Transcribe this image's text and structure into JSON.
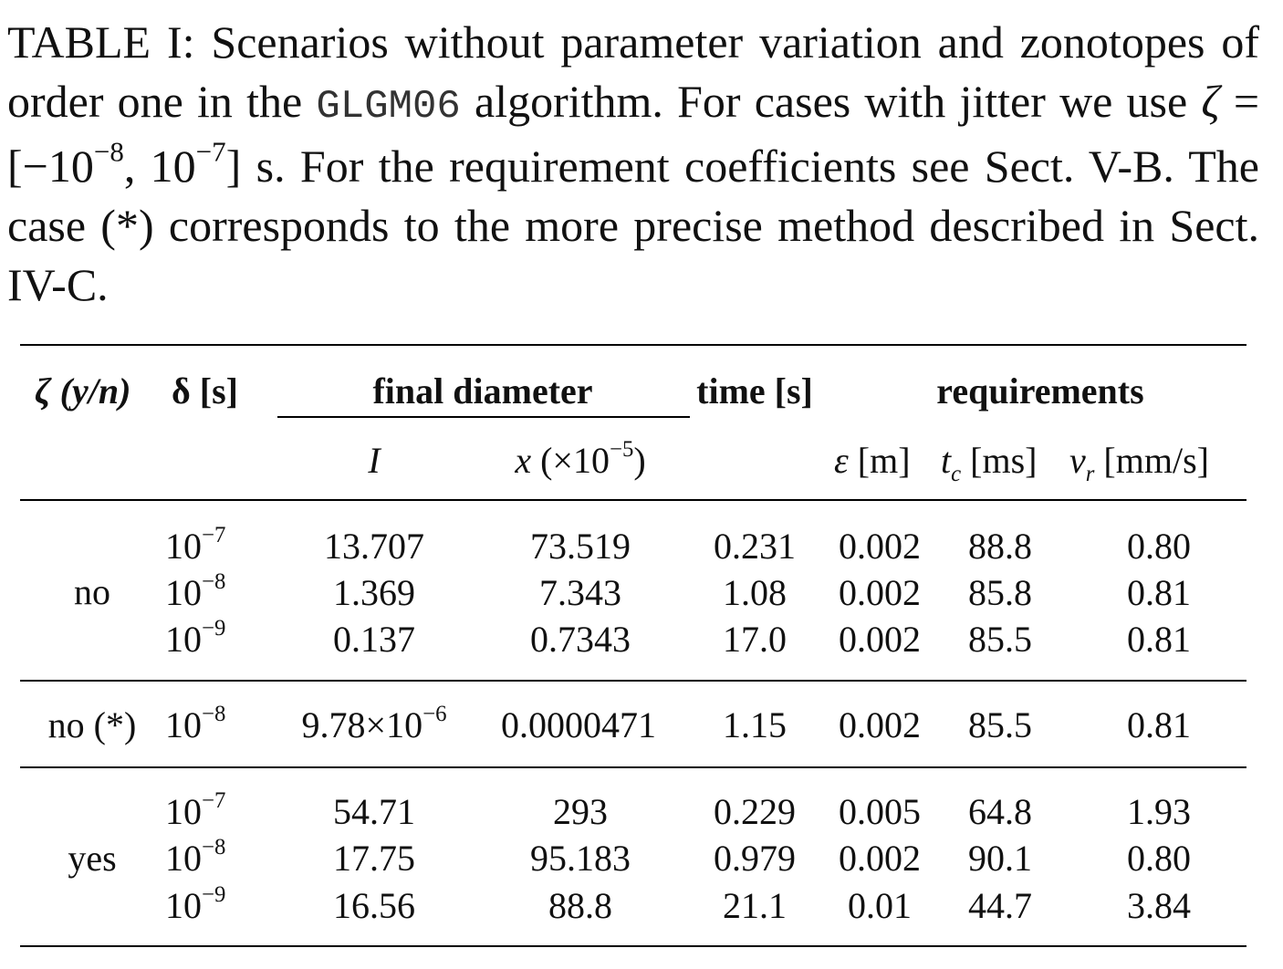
{
  "caption": {
    "label": "TABLE I:",
    "text1": "Scenarios without parameter variation and zonotopes of order one in the",
    "algorithm": "GLGM06",
    "text2": "algorithm. For cases with jitter we use",
    "zeta": "ζ",
    "eq": "= [−10",
    "exp1": "−8",
    "comma": ", 10",
    "exp2": "−7",
    "text3": "] s. For the requirement coefficients see Sect. V-B. The case (*) corresponds to the more precise method described in Sect. IV-C."
  },
  "header": {
    "zeta_label": "ζ (y/n)",
    "delta_label": "δ [s]",
    "final_diameter": "final diameter",
    "time": "time [s]",
    "requirements": "requirements",
    "I": "I",
    "x_var": "x",
    "x_unit": " (×10",
    "x_exp": "−5",
    "x_close": ")",
    "eps": "ε",
    "eps_unit": " [m]",
    "tc": "t",
    "tc_sub": "c",
    "tc_unit": " [ms]",
    "vr": "v",
    "vr_sub": "r",
    "vr_unit": " [mm/s]"
  },
  "groups": [
    {
      "zeta": "no",
      "rows": [
        {
          "delta_base": "10",
          "delta_exp": "−7",
          "I": "13.707",
          "x": "73.519",
          "time": "0.231",
          "eps": "0.002",
          "tc": "88.8",
          "vr": "0.80"
        },
        {
          "delta_base": "10",
          "delta_exp": "−8",
          "I": "1.369",
          "x": "7.343",
          "time": "1.08",
          "eps": "0.002",
          "tc": "85.8",
          "vr": "0.81"
        },
        {
          "delta_base": "10",
          "delta_exp": "−9",
          "I": "0.137",
          "x": "0.7343",
          "time": "17.0",
          "eps": "0.002",
          "tc": "85.5",
          "vr": "0.81"
        }
      ]
    },
    {
      "zeta": "no (*)",
      "rows": [
        {
          "delta_base": "10",
          "delta_exp": "−8",
          "I_base": "9.78×10",
          "I_exp": "−6",
          "x": "0.0000471",
          "time": "1.15",
          "eps": "0.002",
          "tc": "85.5",
          "vr": "0.81"
        }
      ]
    },
    {
      "zeta": "yes",
      "rows": [
        {
          "delta_base": "10",
          "delta_exp": "−7",
          "I": "54.71",
          "x": "293",
          "time": "0.229",
          "eps": "0.005",
          "tc": "64.8",
          "vr": "1.93"
        },
        {
          "delta_base": "10",
          "delta_exp": "−8",
          "I": "17.75",
          "x": "95.183",
          "time": "0.979",
          "eps": "0.002",
          "tc": "90.1",
          "vr": "0.80"
        },
        {
          "delta_base": "10",
          "delta_exp": "−9",
          "I": "16.56",
          "x": "88.8",
          "time": "21.1",
          "eps": "0.01",
          "tc": "44.7",
          "vr": "3.84"
        }
      ]
    }
  ]
}
